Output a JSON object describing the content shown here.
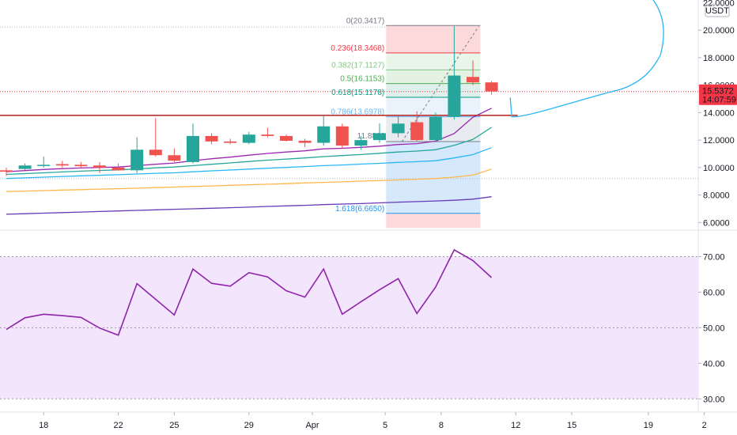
{
  "chart_data": [
    {
      "type": "candlestick",
      "title": "",
      "quote_currency": "USDT",
      "ylim": [
        5.5,
        22.2
      ],
      "y_ticks": [
        "22.0000",
        "20.0000",
        "18.0000",
        "16.0000",
        "14.0000",
        "12.0000",
        "10.0000",
        "8.0000",
        "6.0000"
      ],
      "x_ticks": [
        "18",
        "22",
        "25",
        "29",
        "Apr",
        "5",
        "8",
        "12",
        "15",
        "19",
        "2"
      ],
      "current_price": "15.5372",
      "countdown": "14:07:59",
      "candles": [
        {
          "o": 9.8,
          "h": 10.0,
          "l": 9.4,
          "c": 9.7
        },
        {
          "o": 9.9,
          "h": 10.3,
          "l": 9.8,
          "c": 10.15
        },
        {
          "o": 10.15,
          "h": 10.8,
          "l": 10.0,
          "c": 10.2
        },
        {
          "o": 10.25,
          "h": 10.5,
          "l": 10.0,
          "c": 10.15
        },
        {
          "o": 10.2,
          "h": 10.4,
          "l": 10.0,
          "c": 10.1
        },
        {
          "o": 10.15,
          "h": 10.4,
          "l": 9.6,
          "c": 10.0
        },
        {
          "o": 10.0,
          "h": 10.3,
          "l": 9.8,
          "c": 9.8
        },
        {
          "o": 9.8,
          "h": 12.2,
          "l": 9.6,
          "c": 11.3
        },
        {
          "o": 11.3,
          "h": 13.6,
          "l": 10.8,
          "c": 10.9
        },
        {
          "o": 10.9,
          "h": 11.4,
          "l": 10.4,
          "c": 10.5
        },
        {
          "o": 10.4,
          "h": 13.2,
          "l": 10.3,
          "c": 12.3
        },
        {
          "o": 12.3,
          "h": 12.5,
          "l": 11.7,
          "c": 11.9
        },
        {
          "o": 11.9,
          "h": 12.1,
          "l": 11.7,
          "c": 11.8
        },
        {
          "o": 11.8,
          "h": 12.6,
          "l": 11.7,
          "c": 12.4
        },
        {
          "o": 12.4,
          "h": 12.9,
          "l": 12.2,
          "c": 12.3
        },
        {
          "o": 12.3,
          "h": 12.4,
          "l": 11.9,
          "c": 11.95
        },
        {
          "o": 11.95,
          "h": 12.1,
          "l": 11.5,
          "c": 11.8
        },
        {
          "o": 11.8,
          "h": 13.8,
          "l": 11.6,
          "c": 13.0
        },
        {
          "o": 13.0,
          "h": 13.2,
          "l": 11.4,
          "c": 11.6
        },
        {
          "o": 11.6,
          "h": 12.3,
          "l": 11.3,
          "c": 12.0
        },
        {
          "o": 12.0,
          "h": 13.2,
          "l": 11.8,
          "c": 12.5
        },
        {
          "o": 12.5,
          "h": 13.8,
          "l": 12.2,
          "c": 13.2
        },
        {
          "o": 13.3,
          "h": 14.1,
          "l": 11.9,
          "c": 12.0
        },
        {
          "o": 12.0,
          "h": 14.0,
          "l": 11.9,
          "c": 13.7
        },
        {
          "o": 13.7,
          "h": 20.3,
          "l": 13.5,
          "c": 16.7
        },
        {
          "o": 16.6,
          "h": 17.8,
          "l": 16.0,
          "c": 16.2
        },
        {
          "o": 16.2,
          "h": 16.3,
          "l": 15.3,
          "c": 15.5372
        }
      ],
      "moving_averages": [
        {
          "color": "#9c27b0",
          "values": [
            9.7,
            9.78,
            9.86,
            9.92,
            9.97,
            10.01,
            10.04,
            10.14,
            10.24,
            10.33,
            10.5,
            10.64,
            10.76,
            10.9,
            11.03,
            11.13,
            11.22,
            11.36,
            11.4,
            11.47,
            11.56,
            11.68,
            11.74,
            11.92,
            12.48,
            13.66,
            14.32
          ]
        },
        {
          "color": "#26a69a",
          "values": [
            9.5,
            9.56,
            9.62,
            9.68,
            9.74,
            9.79,
            9.83,
            9.9,
            9.98,
            10.04,
            10.14,
            10.24,
            10.34,
            10.44,
            10.54,
            10.62,
            10.7,
            10.8,
            10.87,
            10.95,
            11.04,
            11.13,
            11.2,
            11.3,
            11.62,
            12.05,
            12.93
          ]
        },
        {
          "color": "#29b6f6",
          "values": [
            9.2,
            9.25,
            9.3,
            9.35,
            9.4,
            9.44,
            9.48,
            9.53,
            9.58,
            9.62,
            9.69,
            9.76,
            9.82,
            9.89,
            9.95,
            10.01,
            10.07,
            10.14,
            10.19,
            10.25,
            10.31,
            10.38,
            10.43,
            10.5,
            10.7,
            10.94,
            11.45
          ]
        },
        {
          "color": "#ffb74d",
          "values": [
            8.25,
            8.29,
            8.32,
            8.36,
            8.39,
            8.43,
            8.46,
            8.5,
            8.54,
            8.58,
            8.62,
            8.66,
            8.71,
            8.75,
            8.79,
            8.83,
            8.88,
            8.92,
            8.96,
            9.01,
            9.05,
            9.1,
            9.15,
            9.2,
            9.3,
            9.45,
            9.88
          ]
        },
        {
          "color": "#673ab7",
          "values": [
            6.6,
            6.64,
            6.68,
            6.72,
            6.76,
            6.8,
            6.84,
            6.88,
            6.92,
            6.96,
            7.0,
            7.04,
            7.08,
            7.12,
            7.17,
            7.21,
            7.25,
            7.3,
            7.34,
            7.38,
            7.43,
            7.48,
            7.52,
            7.57,
            7.62,
            7.7,
            7.88
          ]
        }
      ],
      "horizontal_line": {
        "value": 13.8,
        "color": "#b71c1c"
      },
      "fib_retracement": {
        "levels": [
          {
            "label": "0(20.3417)",
            "value": 20.3417,
            "color": "#787b86"
          },
          {
            "label": "0.236(18.3468)",
            "value": 18.3468,
            "color": "#f23645"
          },
          {
            "label": "0.382(17.1127)",
            "value": 17.1127,
            "color": "#81c784"
          },
          {
            "label": "0.5(16.1153)",
            "value": 16.1153,
            "color": "#4caf50"
          },
          {
            "label": "0.618(15.1178)",
            "value": 15.1178,
            "color": "#089981"
          },
          {
            "label": "0.786(13.6978)",
            "value": 13.6978,
            "color": "#64b5f6"
          },
          {
            "label": "11.8889",
            "value": 11.8889,
            "color": "#787b86"
          },
          {
            "label": "1.618(6.6650)",
            "value": 6.665,
            "color": "#2196f3"
          }
        ],
        "bottom": 5.6
      },
      "projection_curve_color": "#29b6f6"
    },
    {
      "type": "line",
      "title": "",
      "ylim": [
        26.5,
        77
      ],
      "y_ticks": [
        "70.00",
        "60.00",
        "50.00",
        "40.00",
        "30.00"
      ],
      "band": [
        30,
        70
      ],
      "midline": 50,
      "series": [
        {
          "color": "#8e24aa",
          "values": [
            49.5,
            52.8,
            53.8,
            53.4,
            52.9,
            49.9,
            47.9,
            62.4,
            58.0,
            53.6,
            66.5,
            62.5,
            61.7,
            65.5,
            64.3,
            60.4,
            58.6,
            66.5,
            53.8,
            57.3,
            60.7,
            63.8,
            54.0,
            61.4,
            71.9,
            68.9,
            64.1
          ]
        }
      ]
    }
  ]
}
